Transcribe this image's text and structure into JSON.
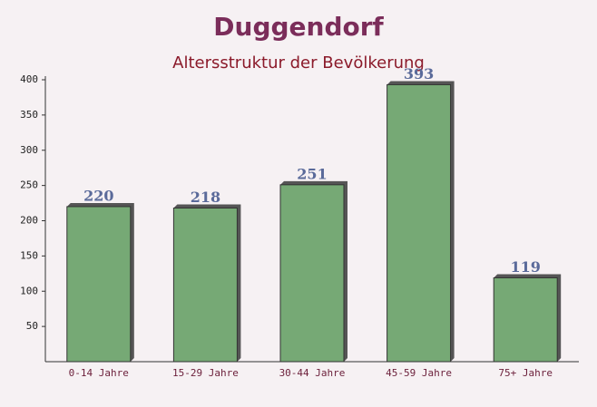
{
  "chart_data": {
    "type": "bar",
    "title": "Duggendorf",
    "subtitle": "Altersstruktur der Bevölkerung",
    "categories": [
      "0-14 Jahre",
      "15-29 Jahre",
      "30-44 Jahre",
      "45-59 Jahre",
      "75+ Jahre"
    ],
    "values": [
      220,
      218,
      251,
      393,
      119
    ],
    "color": "#6aa36a",
    "ylim": [
      0,
      400
    ],
    "yticks": [
      50,
      100,
      150,
      200,
      250,
      300,
      350,
      400
    ],
    "grid": false
  }
}
